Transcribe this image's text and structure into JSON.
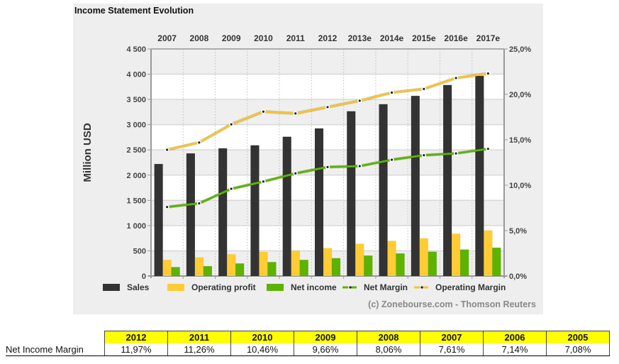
{
  "chart_data": {
    "type": "bar",
    "title": "Income Statement Evolution",
    "categories": [
      "2007",
      "2008",
      "2009",
      "2010",
      "2011",
      "2012",
      "2013e",
      "2014e",
      "2015e",
      "2016e",
      "2017e"
    ],
    "ylabel": "Million USD",
    "ylim": [
      0,
      4500
    ],
    "yticks": [
      0,
      500,
      1000,
      1500,
      2000,
      2500,
      3000,
      3500,
      4000,
      4500
    ],
    "ytick_labels": [
      "0",
      "500",
      "1 000",
      "1 500",
      "2 000",
      "2 500",
      "3 000",
      "3 500",
      "4 000",
      "4 500"
    ],
    "y2lim": [
      0,
      25
    ],
    "y2ticks": [
      0,
      5,
      10,
      15,
      20,
      25
    ],
    "y2tick_labels": [
      "0,0%",
      "5,0%",
      "10,0%",
      "15,0%",
      "20,0%",
      "25,0%"
    ],
    "x_axis_position": "top",
    "grid": true,
    "legend_position": "bottom",
    "series": [
      {
        "name": "Sales",
        "type": "bar",
        "axis": "left",
        "color": "#333333",
        "values": [
          2220,
          2430,
          2530,
          2590,
          2760,
          2925,
          3265,
          3405,
          3570,
          3785,
          3965
        ]
      },
      {
        "name": "Operating profit",
        "type": "bar",
        "axis": "left",
        "color": "#ffcc33",
        "values": [
          318,
          367,
          429,
          476,
          500,
          553,
          638,
          695,
          746,
          836,
          902
        ]
      },
      {
        "name": "Net income",
        "type": "bar",
        "axis": "left",
        "color": "#5cb300",
        "values": [
          176,
          195,
          248,
          276,
          319,
          353,
          405,
          447,
          481,
          524,
          561
        ]
      },
      {
        "name": "Net Margin",
        "type": "line",
        "axis": "right",
        "unit": "%",
        "color": "#5cb300",
        "values": [
          7.6,
          8.0,
          9.6,
          10.4,
          11.3,
          12.0,
          12.1,
          12.8,
          13.3,
          13.5,
          14.0
        ]
      },
      {
        "name": "Operating Margin",
        "type": "line",
        "axis": "right",
        "unit": "%",
        "color": "#f5c431",
        "values": [
          13.9,
          14.7,
          16.7,
          18.1,
          17.9,
          18.6,
          19.3,
          20.2,
          20.6,
          21.8,
          22.3
        ]
      }
    ],
    "credit": "(c) Zonebourse.com - Thomson Reuters"
  },
  "table": {
    "row_label": "Net Income Margin",
    "years": [
      "2012",
      "2011",
      "2010",
      "2009",
      "2008",
      "2007",
      "2006",
      "2005"
    ],
    "values": [
      "11,97%",
      "11,26%",
      "10,46%",
      "9,66%",
      "8,06%",
      "7,61%",
      "7,14%",
      "7,08%"
    ]
  }
}
